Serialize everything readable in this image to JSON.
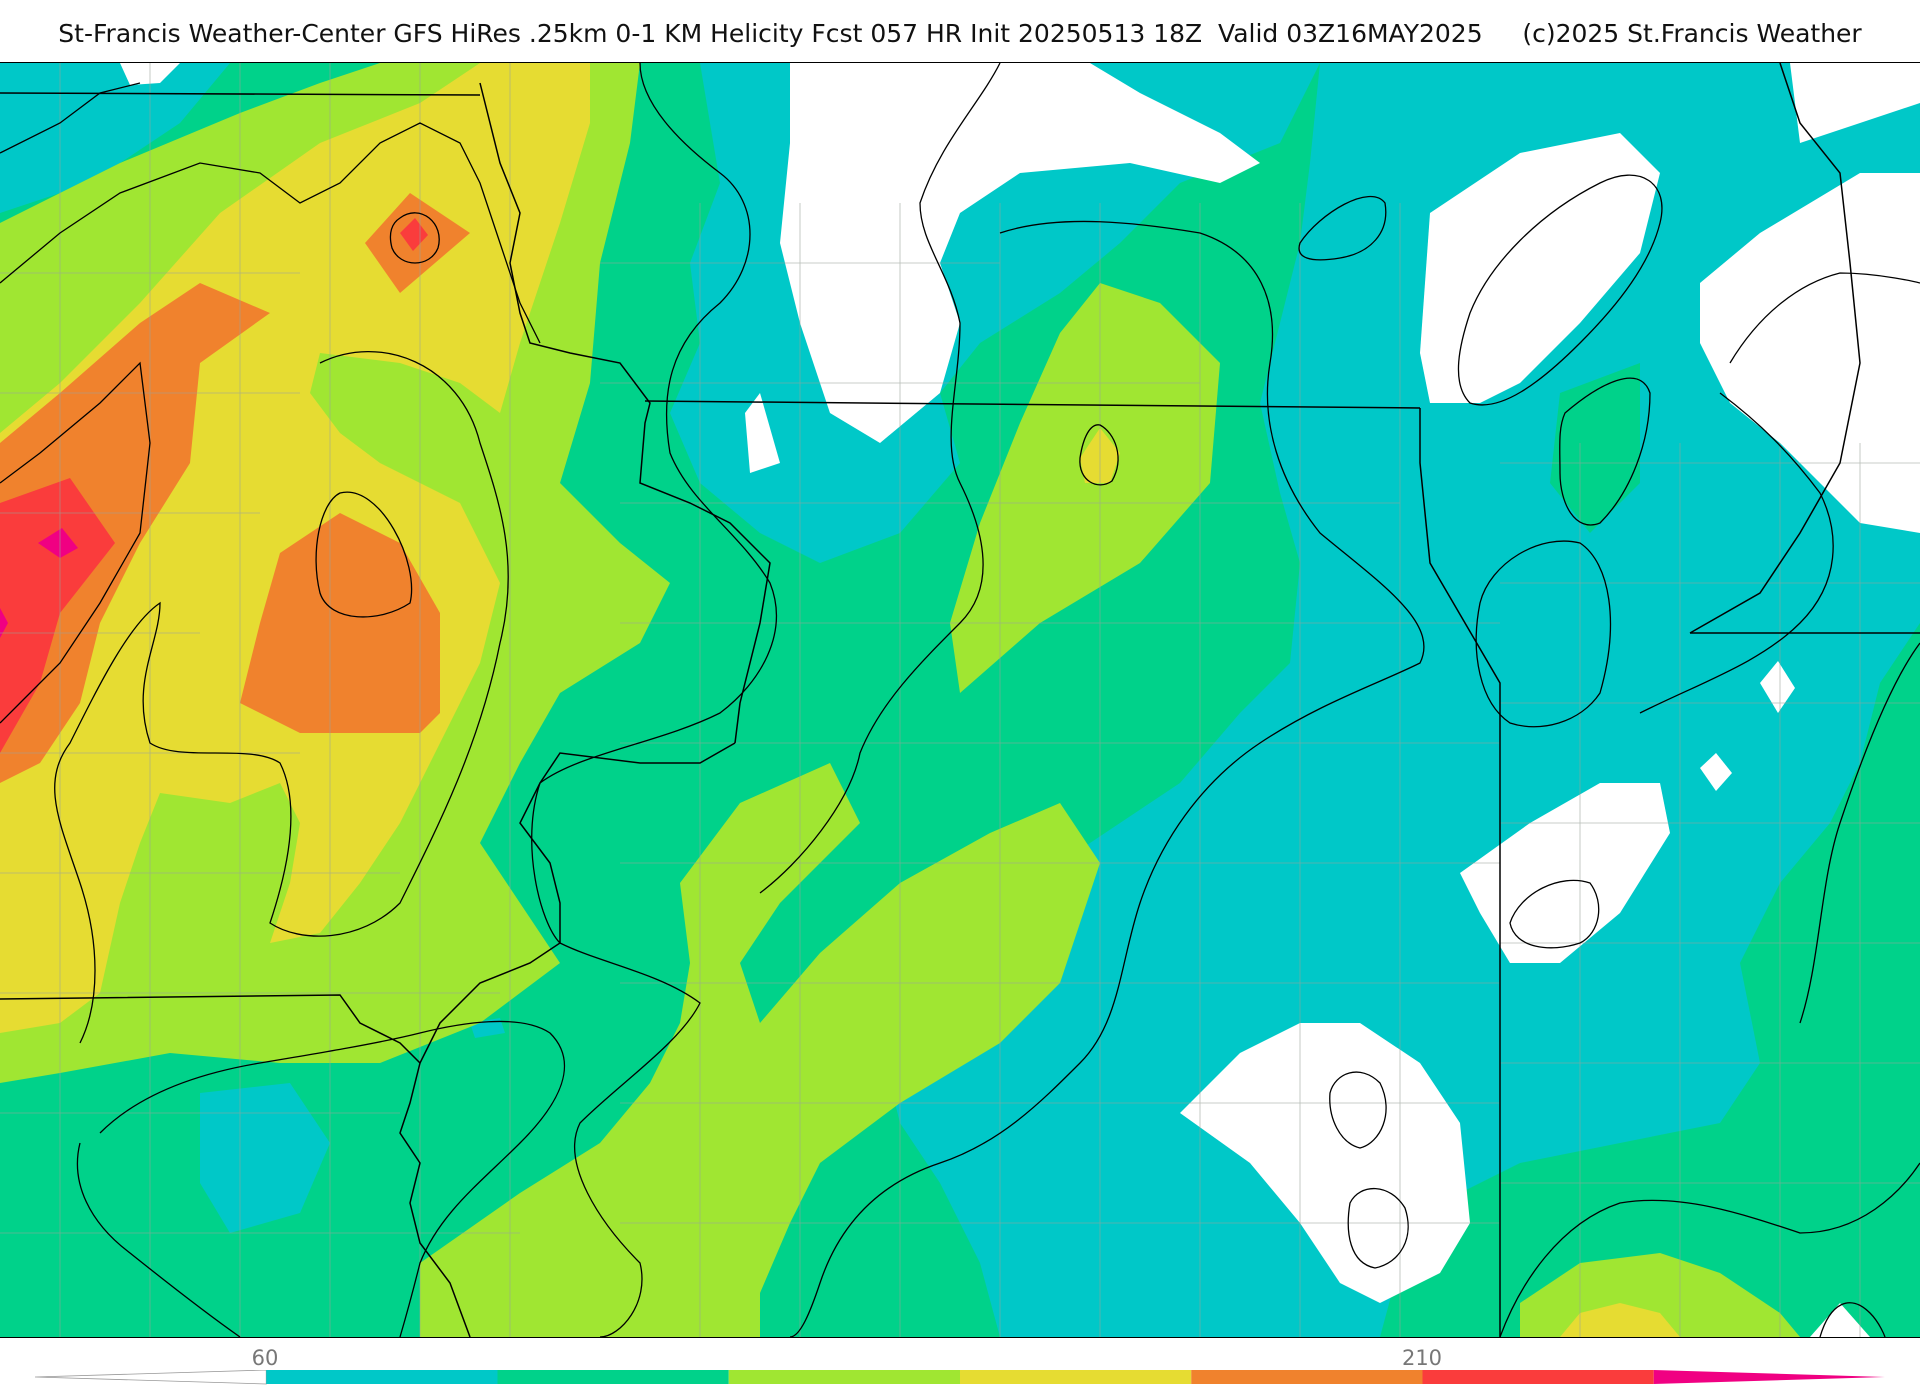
{
  "header": {
    "title": "St-Francis Weather-Center GFS HiRes .25km 0-1 KM Helicity Fcst 057 HR Init 20250513 18Z  Valid 03Z16MAY2025     (c)2025 St.Francis Weather"
  },
  "colorbar": {
    "tick_labels": [
      "60",
      "210"
    ],
    "colors": [
      "#ffffff",
      "#00c8c8",
      "#00d28a",
      "#a0e632",
      "#e6dc32",
      "#f0822d",
      "#fa3c3c",
      "#f00082"
    ]
  },
  "map": {
    "field": "0-1 KM Helicity",
    "fill_colors": {
      "white": "#ffffff",
      "cyan": "#00c8c8",
      "green": "#00d28a",
      "lime": "#a0e632",
      "yellow": "#e6dc32",
      "orange": "#f0822d",
      "red": "#fa3c3c",
      "magenta": "#f00082"
    },
    "boundary_color": "#000000",
    "county_line_color": "#9aa39a"
  }
}
